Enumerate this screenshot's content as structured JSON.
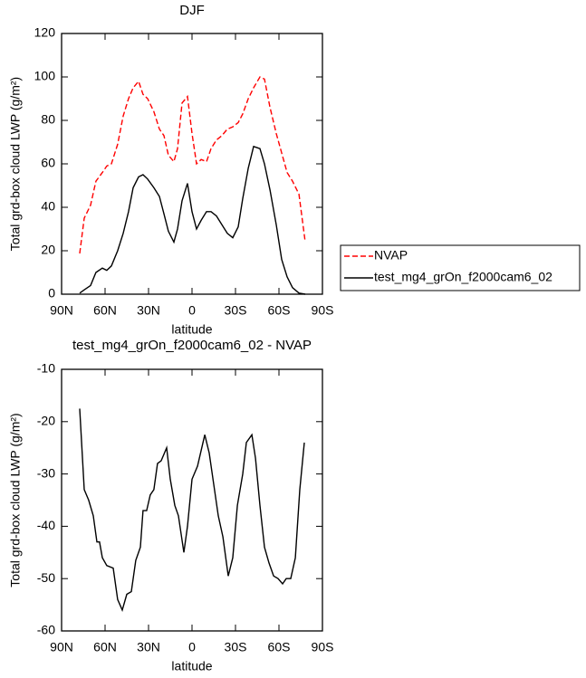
{
  "chart_data": [
    {
      "type": "line",
      "title": "DJF",
      "xlabel": "latitude",
      "ylabel": "Total grd-box cloud LWP (g/m²)",
      "x": [
        77.5,
        74.4,
        70,
        66.3,
        61.9,
        58.8,
        55.6,
        51.3,
        47.5,
        43.8,
        40.6,
        36.9,
        33.8,
        30.6,
        26.3,
        22.5,
        19.4,
        16.3,
        12.5,
        10,
        6.9,
        3.1,
        0,
        -3.1,
        -6.3,
        -10,
        -13.1,
        -16.9,
        -20.6,
        -24.4,
        -28.1,
        -31.9,
        -35,
        -38.8,
        -42.5,
        -46.9,
        -50,
        -53.8,
        -58.1,
        -61.9,
        -65.6,
        -69.4,
        -73.8,
        -78.1
      ],
      "series": [
        {
          "name": "NVAP",
          "color": "#ff0000",
          "linestyle": "dashed",
          "values": [
            18.75,
            35,
            41,
            52,
            56,
            59,
            60,
            69,
            82,
            90,
            95,
            98,
            92,
            90,
            84,
            76,
            73,
            64,
            61,
            67,
            88,
            91,
            74,
            60,
            62,
            61,
            67,
            71,
            73,
            76,
            77,
            79,
            83,
            90,
            95,
            100,
            99,
            86,
            74,
            65,
            56,
            52,
            46,
            24
          ]
        },
        {
          "name": "test_mg4_grOn_f2000cam6_02",
          "color": "#000000",
          "linestyle": "solid",
          "values": [
            0.5,
            2,
            4,
            10,
            12,
            11,
            13,
            20,
            28,
            38,
            49,
            54,
            55,
            53,
            49,
            45,
            37,
            29,
            24,
            30,
            43,
            51,
            38,
            30,
            34,
            38,
            38,
            36,
            32,
            28,
            26,
            31,
            44,
            58,
            68,
            67,
            60,
            48,
            32,
            16,
            8,
            3,
            0.5,
            0
          ]
        }
      ],
      "xlim": [
        90,
        -90
      ],
      "ylim": [
        0,
        120
      ],
      "xticks": [
        {
          "value": 90,
          "label": "90N"
        },
        {
          "value": 60,
          "label": "60N"
        },
        {
          "value": 30,
          "label": "30N"
        },
        0,
        {
          "value": -30,
          "label": "30S"
        },
        {
          "value": -60,
          "label": "60S"
        },
        {
          "value": -90,
          "label": "90S"
        }
      ],
      "yticks": [
        0,
        20,
        40,
        60,
        80,
        100,
        120
      ],
      "legend": "right"
    },
    {
      "type": "line",
      "title": "test_mg4_grOn_f2000cam6_02 - NVAP",
      "xlabel": "latitude",
      "ylabel": "Total grd-box cloud LWP (g/m²)",
      "x": [
        77.5,
        74.4,
        71.3,
        68.1,
        65.6,
        63.8,
        61.9,
        58.8,
        54.4,
        51.3,
        48.1,
        45,
        41.9,
        38.8,
        35.6,
        33.8,
        31.3,
        28.8,
        26.3,
        23.8,
        21.3,
        17.5,
        15,
        11.9,
        9.4,
        5.6,
        3.1,
        0,
        -3.8,
        -8.8,
        -11.9,
        -15,
        -18.1,
        -21.3,
        -25,
        -28.1,
        -31.3,
        -35,
        -37.5,
        -41.3,
        -43.8,
        -46.9,
        -50,
        -53.1,
        -56.3,
        -59.4,
        -62.5,
        -65,
        -68.1,
        -71.3,
        -74.4,
        -77.5
      ],
      "series": [
        {
          "color": "#000000",
          "linestyle": "solid",
          "values": [
            -17.5,
            -33,
            -35,
            -38,
            -43,
            -43,
            -46,
            -47.5,
            -48,
            -54,
            -56,
            -53,
            -52.5,
            -46.5,
            -44,
            -37,
            -37,
            -34,
            -33,
            -28,
            -27.5,
            -25,
            -31,
            -36,
            -38,
            -45,
            -40,
            -31,
            -28.5,
            -22.5,
            -26,
            -32,
            -38,
            -42,
            -49.5,
            -46,
            -36,
            -30,
            -24,
            -22.5,
            -27,
            -36,
            -44,
            -47,
            -49.5,
            -50,
            -51,
            -50,
            -50,
            -46,
            -33,
            -24
          ]
        }
      ],
      "xlim": [
        90,
        -90
      ],
      "ylim": [
        -60,
        -10
      ],
      "xticks": [
        {
          "value": 90,
          "label": "90N"
        },
        {
          "value": 60,
          "label": "60N"
        },
        {
          "value": 30,
          "label": "30N"
        },
        0,
        {
          "value": -30,
          "label": "30S"
        },
        {
          "value": -60,
          "label": "60S"
        },
        {
          "value": -90,
          "label": "90S"
        }
      ],
      "yticks": [
        -60,
        -50,
        -40,
        -30,
        -20,
        -10
      ]
    }
  ]
}
